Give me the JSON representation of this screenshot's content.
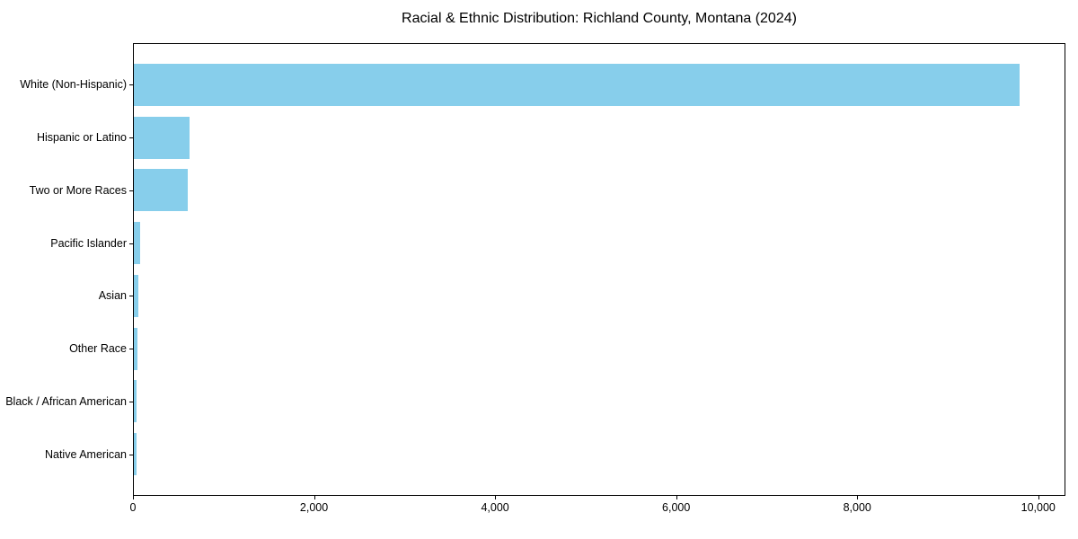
{
  "title": "Racial & Ethnic Distribution: Richland County, Montana (2024)",
  "chart_data": {
    "type": "bar",
    "orientation": "horizontal",
    "title": "Racial & Ethnic Distribution: Richland County, Montana (2024)",
    "categories": [
      "White (Non-Hispanic)",
      "Hispanic or Latino",
      "Two or More Races",
      "Pacific Islander",
      "Asian",
      "Other Race",
      "Black / African American",
      "Native American"
    ],
    "values": [
      9800,
      620,
      600,
      65,
      50,
      40,
      30,
      25
    ],
    "xlabel": "",
    "ylabel": "",
    "xlim": [
      0,
      10300
    ],
    "x_ticks": [
      0,
      2000,
      4000,
      6000,
      8000,
      10000
    ],
    "x_tick_labels": [
      "0",
      "2,000",
      "4,000",
      "6,000",
      "8,000",
      "10,000"
    ],
    "bar_color": "#87CEEB",
    "text_color": "#000000",
    "grid": false,
    "legend": null
  }
}
